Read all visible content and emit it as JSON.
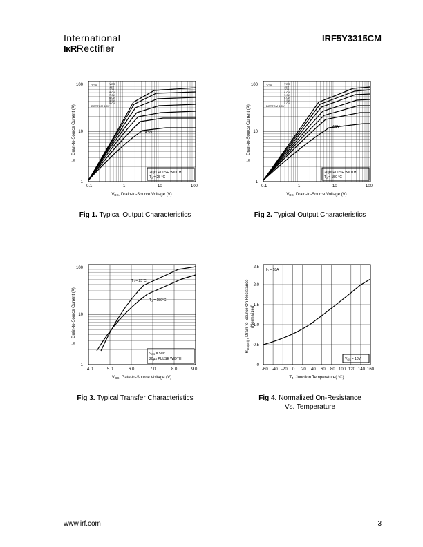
{
  "header": {
    "logo_line1": "International",
    "logo_ior": "IκR",
    "logo_line2_rest": "Rectifier",
    "part_number": "IRF5Y3315CM"
  },
  "footer": {
    "url": "www.irf.com",
    "page_num": "3"
  },
  "fig1": {
    "caption_bold": "Fig 1.",
    "caption_rest": "  Typical Output Characteristics",
    "xlabel": "Vₑₛ, Drain-to-Source Voltage (V)",
    "ylabel": "Iₑ , Drain-to-Source Current (A)",
    "xlabel_plain": "V",
    "xlabel_sub": "DS",
    "xlabel_after": ", Drain-to-Source Voltage (V)",
    "ylabel_plain": "I",
    "ylabel_sub": "D",
    "ylabel_after": " , Drain-to-Source Current (A)",
    "x_decades": [
      0.1,
      1,
      10,
      100
    ],
    "y_decades": [
      1,
      10,
      100
    ],
    "legend_top": "TOP",
    "legend_vgs": "VGS",
    "legend_vals": [
      "15V",
      "10V",
      "8.0V",
      "7.0V",
      "6.0V",
      "5.5V",
      "5.0V"
    ],
    "legend_bottom": "BOTTOM 4.5V",
    "anno_pulse": "20µs PULSE WIDTH",
    "anno_tj": "T₅ = 25 °C",
    "curve_4_5_label": "4.5V",
    "curves": [
      {
        "plateau": 62
      },
      {
        "plateau": 55
      },
      {
        "plateau": 43
      },
      {
        "plateau": 33
      },
      {
        "plateau": 26
      },
      {
        "plateau": 20
      },
      {
        "plateau": 14
      }
    ]
  },
  "fig2": {
    "caption_bold": "Fig 2.",
    "caption_rest": "  Typical Output Characteristics",
    "anno_pulse": "20µs PULSE WIDTH",
    "anno_tj": "T₅ = 150 °C",
    "x_decades": [
      0.1,
      1,
      10,
      100
    ],
    "y_decades": [
      1,
      10,
      100
    ],
    "legend_top": "TOP",
    "legend_vgs": "VGS",
    "legend_vals": [
      "15V",
      "10V",
      "8.0V",
      "7.0V",
      "6.0V",
      "5.5V",
      "5.0V"
    ],
    "legend_bottom": "BOTTOM 4.5V",
    "curve_4_5_label": "4.5V",
    "xlabel_plain": "V",
    "xlabel_sub": "DS",
    "xlabel_after": ", Drain-to-Source Voltage (V)",
    "ylabel_plain": "I",
    "ylabel_sub": "D",
    "ylabel_after": " , Drain-to-Source Current (A)"
  },
  "fig3": {
    "caption_bold": "Fig 3.",
    "caption_rest": "  Typical Transfer Characteristics",
    "xlabel_plain": "V",
    "xlabel_sub": "GS",
    "xlabel_after": ", Gate-to-Source Voltage (V)",
    "ylabel_plain": "I",
    "ylabel_sub": "D",
    "ylabel_after": " , Drain-to-Source Current (A)",
    "x_ticks": [
      4.0,
      5.0,
      6.0,
      7.0,
      8.0,
      9.0
    ],
    "y_decades": [
      1,
      10,
      100
    ],
    "anno_vds": "Vₑₛ = 50V",
    "anno_vds_plain": "V",
    "anno_vds_sub": "DS",
    "anno_vds_after": " = 50V",
    "anno_pulse": "20µs PULSE WIDTH",
    "curve1_label": "T₅ = 25°C",
    "curve2_label": "T₅ = 150°C"
  },
  "fig4": {
    "caption_bold": "Fig 4.",
    "caption_rest": "  Normalized On-Resistance",
    "caption_line2": "Vs. Temperature",
    "xlabel_plain": "T",
    "xlabel_sub": "J",
    "xlabel_after": ", Junction Temperature( °C)",
    "ylabel_plain": "R",
    "ylabel_sub": "DS(on)",
    "ylabel_after": "  , Drain-to-Source On Resistance",
    "ylabel_line2": "(Normalized)",
    "x_ticks": [
      -60,
      -40,
      -20,
      0,
      20,
      40,
      60,
      80,
      100,
      120,
      140,
      160
    ],
    "y_ticks": [
      0,
      0.5,
      1.0,
      1.5,
      2.0,
      2.5
    ],
    "anno_id": "I",
    "anno_id_sub": "D",
    "anno_id_after": " = 18A",
    "anno_vgs_plain": "V",
    "anno_vgs_sub": "GS",
    "anno_vgs_after": " = 10V",
    "curve": [
      {
        "x": -60,
        "y": 0.5
      },
      {
        "x": -20,
        "y": 0.65
      },
      {
        "x": 20,
        "y": 0.95
      },
      {
        "x": 60,
        "y": 1.25
      },
      {
        "x": 100,
        "y": 1.6
      },
      {
        "x": 140,
        "y": 2.0
      },
      {
        "x": 160,
        "y": 2.15
      }
    ]
  },
  "colors": {
    "line": "#000000",
    "bg": "#ffffff"
  }
}
